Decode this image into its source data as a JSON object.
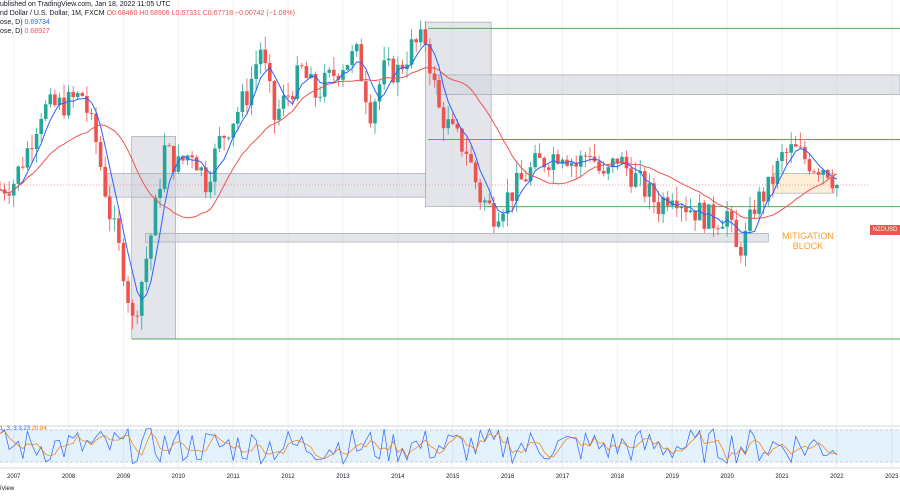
{
  "header": {
    "line1": "ublished on TradingView.com, Jan 18, 2022 11:05 UTC",
    "line2_symbol": "nd Dollar / U.S. Dollar, 1M, FXCM",
    "line2_ohlc": "O0.68460 H0.68906 L0.67331 C0.67718 −0.00742 (−1.08%)",
    "ma1_label": "ose, D)",
    "ma1_value": "0.69734",
    "ma2_label": "ose, D)",
    "ma2_value": "0.68927"
  },
  "price_tag": "NZDUSD",
  "annotation": {
    "line1": "MITIGATION",
    "line2": "BLOCK"
  },
  "stoch_label": {
    "params": "1, 3, 3",
    "k_value": "3.23",
    "d_value": "20.84"
  },
  "footer_text": "iView",
  "colors": {
    "up": "#26a69a",
    "down": "#ef5350",
    "ma_blue": "#2962ff",
    "ma_red": "#ef5350",
    "level_line": "#4caf50",
    "zone_fill": "#d1d4dc",
    "stoch_k": "#2962ff",
    "stoch_d": "#f57c00",
    "annotation": "#f5a031"
  },
  "chart_data": {
    "type": "candlestick",
    "symbol": "NZDUSD",
    "timeframe": "1M",
    "x_ticks": [
      "2007",
      "2008",
      "2009",
      "2010",
      "2011",
      "2012",
      "2013",
      "2014",
      "2015",
      "2016",
      "2017",
      "2018",
      "2019",
      "2020",
      "2021",
      "2022",
      "2023"
    ],
    "x_domain": [
      2006.75,
      2023.15
    ],
    "y_domain": [
      0.4,
      0.92
    ],
    "levels": [
      0.884,
      0.743,
      0.658,
      0.49
    ],
    "zones": [
      {
        "x0": 2009.15,
        "x1": 2009.95,
        "y0": 0.49,
        "y1": 0.747
      },
      {
        "x0": 2014.5,
        "x1": 2015.7,
        "y0": 0.658,
        "y1": 0.892
      },
      {
        "x0": 2014.7,
        "x1": 2023.15,
        "y0": 0.8,
        "y1": 0.825
      },
      {
        "x0": 2008.7,
        "x1": 2014.5,
        "y0": 0.67,
        "y1": 0.7
      },
      {
        "x0": 2009.4,
        "x1": 2020.75,
        "y0": 0.613,
        "y1": 0.624
      },
      {
        "x0": 2020.85,
        "x1": 2021.95,
        "y0": 0.675,
        "y1": 0.7
      }
    ],
    "series_close": [
      {
        "t": 2006.75,
        "c": 0.68
      },
      {
        "t": 2007.0,
        "c": 0.69
      },
      {
        "t": 2007.25,
        "c": 0.73
      },
      {
        "t": 2007.5,
        "c": 0.78
      },
      {
        "t": 2007.75,
        "c": 0.785
      },
      {
        "t": 2008.0,
        "c": 0.79
      },
      {
        "t": 2008.25,
        "c": 0.8
      },
      {
        "t": 2008.5,
        "c": 0.74
      },
      {
        "t": 2008.75,
        "c": 0.65
      },
      {
        "t": 2009.0,
        "c": 0.58
      },
      {
        "t": 2009.17,
        "c": 0.51
      },
      {
        "t": 2009.35,
        "c": 0.57
      },
      {
        "t": 2009.55,
        "c": 0.64
      },
      {
        "t": 2009.75,
        "c": 0.73
      },
      {
        "t": 2010.0,
        "c": 0.71
      },
      {
        "t": 2010.25,
        "c": 0.73
      },
      {
        "t": 2010.5,
        "c": 0.69
      },
      {
        "t": 2010.75,
        "c": 0.74
      },
      {
        "t": 2011.0,
        "c": 0.77
      },
      {
        "t": 2011.25,
        "c": 0.8
      },
      {
        "t": 2011.5,
        "c": 0.86
      },
      {
        "t": 2011.75,
        "c": 0.77
      },
      {
        "t": 2012.0,
        "c": 0.8
      },
      {
        "t": 2012.25,
        "c": 0.83
      },
      {
        "t": 2012.5,
        "c": 0.8
      },
      {
        "t": 2012.75,
        "c": 0.82
      },
      {
        "t": 2013.0,
        "c": 0.84
      },
      {
        "t": 2013.25,
        "c": 0.85
      },
      {
        "t": 2013.5,
        "c": 0.78
      },
      {
        "t": 2013.75,
        "c": 0.83
      },
      {
        "t": 2014.0,
        "c": 0.83
      },
      {
        "t": 2014.25,
        "c": 0.86
      },
      {
        "t": 2014.5,
        "c": 0.87
      },
      {
        "t": 2014.75,
        "c": 0.78
      },
      {
        "t": 2015.0,
        "c": 0.75
      },
      {
        "t": 2015.25,
        "c": 0.73
      },
      {
        "t": 2015.5,
        "c": 0.67
      },
      {
        "t": 2015.75,
        "c": 0.65
      },
      {
        "t": 2016.0,
        "c": 0.67
      },
      {
        "t": 2016.25,
        "c": 0.69
      },
      {
        "t": 2016.5,
        "c": 0.71
      },
      {
        "t": 2016.75,
        "c": 0.72
      },
      {
        "t": 2017.0,
        "c": 0.73
      },
      {
        "t": 2017.25,
        "c": 0.71
      },
      {
        "t": 2017.5,
        "c": 0.73
      },
      {
        "t": 2017.75,
        "c": 0.69
      },
      {
        "t": 2018.0,
        "c": 0.72
      },
      {
        "t": 2018.25,
        "c": 0.7
      },
      {
        "t": 2018.5,
        "c": 0.68
      },
      {
        "t": 2018.75,
        "c": 0.66
      },
      {
        "t": 2019.0,
        "c": 0.68
      },
      {
        "t": 2019.25,
        "c": 0.66
      },
      {
        "t": 2019.5,
        "c": 0.65
      },
      {
        "t": 2019.75,
        "c": 0.64
      },
      {
        "t": 2020.0,
        "c": 0.65
      },
      {
        "t": 2020.17,
        "c": 0.6
      },
      {
        "t": 2020.35,
        "c": 0.62
      },
      {
        "t": 2020.5,
        "c": 0.66
      },
      {
        "t": 2020.75,
        "c": 0.68
      },
      {
        "t": 2021.0,
        "c": 0.72
      },
      {
        "t": 2021.2,
        "c": 0.73
      },
      {
        "t": 2021.4,
        "c": 0.72
      },
      {
        "t": 2021.6,
        "c": 0.71
      },
      {
        "t": 2021.8,
        "c": 0.71
      },
      {
        "t": 2022.0,
        "c": 0.685
      },
      {
        "t": 2022.05,
        "c": 0.6772
      }
    ]
  }
}
